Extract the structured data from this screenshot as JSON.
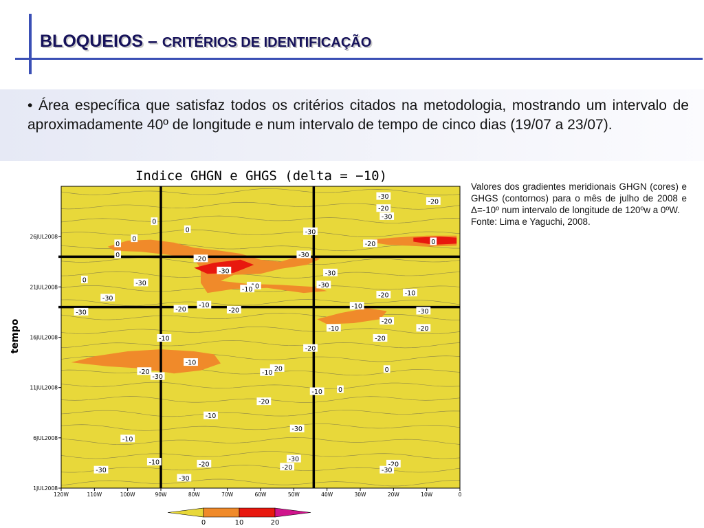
{
  "slide": {
    "title_main": "BLOQUEIOS – ",
    "title_sub": "CRITÉRIOS DE IDENTIFICAÇÃO",
    "bullet": "• Área específica que satisfaz todos os critérios citados na metodologia, mostrando um intervalo de aproximadamente 40º de longitude e num intervalo de tempo de cinco dias (19/07 a 23/07).",
    "caption_line1": "Valores dos gradientes meridionais GHGN (cores) e GHGS (contornos) para o mês de julho de 2008 e Δ=-10º num intervalo de longitude de 120ºw a 0ºW.",
    "caption_line2": "Fonte: Lima e Yaguchi, 2008.",
    "accent_color": "#3a4fb5",
    "title_color": "#16125a"
  },
  "chart_data": {
    "type": "heatmap",
    "title": "Indice GHGN e GHGS (delta = −10)",
    "ylabel": "tempo",
    "x_ticks": [
      "120W",
      "110W",
      "100W",
      "90W",
      "80W",
      "70W",
      "60W",
      "50W",
      "40W",
      "30W",
      "20W",
      "10W",
      "0"
    ],
    "x_values": [
      -120,
      -110,
      -100,
      -90,
      -80,
      -70,
      -60,
      -50,
      -40,
      -30,
      -20,
      -10,
      0
    ],
    "xlim": [
      -120,
      0
    ],
    "y_ticks": [
      "1JUL2008",
      "6JUL2008",
      "11JUL2008",
      "16JUL2008",
      "21JUL2008",
      "26JUL2008"
    ],
    "y_days": [
      1,
      6,
      11,
      16,
      21,
      26
    ],
    "ylim": [
      1,
      31
    ],
    "colorbar": {
      "levels": [
        0,
        10,
        20
      ],
      "labels": [
        "0",
        "10",
        "20"
      ],
      "colors": [
        "#e8d83a",
        "#f08a2a",
        "#e8180e",
        "#d0148c"
      ]
    },
    "highlight_box": {
      "lon": [
        -90,
        -44
      ],
      "days": [
        19,
        24
      ]
    },
    "fill_regions": [
      {
        "level": 10,
        "points": [
          [
            -106,
            25
          ],
          [
            -100,
            25.6
          ],
          [
            -93,
            25.7
          ],
          [
            -86,
            25.4
          ],
          [
            -80,
            24.9
          ],
          [
            -72,
            24.6
          ],
          [
            -66,
            24.3
          ],
          [
            -60,
            23.7
          ],
          [
            -54,
            23.5
          ],
          [
            -47,
            24.2
          ],
          [
            -42,
            23.8
          ],
          [
            -46,
            23.2
          ],
          [
            -54,
            22.8
          ],
          [
            -60,
            22.3
          ],
          [
            -68,
            22.2
          ],
          [
            -72,
            21.6
          ],
          [
            -64,
            21.3
          ],
          [
            -54,
            21.2
          ],
          [
            -44,
            21.0
          ],
          [
            -40,
            20.6
          ],
          [
            -47,
            20.4
          ],
          [
            -58,
            20.9
          ],
          [
            -68,
            20.8
          ],
          [
            -76,
            20.4
          ],
          [
            -78,
            21.4
          ],
          [
            -78,
            22.8
          ],
          [
            -80,
            23.8
          ],
          [
            -88,
            24.2
          ],
          [
            -96,
            24.5
          ],
          [
            -104,
            24.6
          ]
        ]
      },
      {
        "level": 20,
        "points": [
          [
            -80,
            22.9
          ],
          [
            -74,
            23.4
          ],
          [
            -66,
            23.7
          ],
          [
            -62,
            23.2
          ],
          [
            -68,
            22.4
          ],
          [
            -76,
            22.3
          ]
        ]
      },
      {
        "level": 10,
        "points": [
          [
            -43,
            17.8
          ],
          [
            -36,
            18.4
          ],
          [
            -28,
            18.9
          ],
          [
            -22,
            18.6
          ],
          [
            -24,
            17.8
          ],
          [
            -32,
            17.4
          ],
          [
            -40,
            17.3
          ]
        ]
      },
      {
        "level": 10,
        "points": [
          [
            -117,
            13.5
          ],
          [
            -110,
            14.1
          ],
          [
            -100,
            14.6
          ],
          [
            -90,
            14.8
          ],
          [
            -80,
            14.6
          ],
          [
            -74,
            14.3
          ],
          [
            -72,
            13.4
          ],
          [
            -78,
            12.7
          ],
          [
            -86,
            12.4
          ],
          [
            -96,
            12.9
          ],
          [
            -106,
            13.1
          ]
        ]
      },
      {
        "level": 10,
        "points": [
          [
            -30,
            25.6
          ],
          [
            -20,
            25.9
          ],
          [
            -10,
            26.1
          ],
          [
            -1,
            26.1
          ],
          [
            -1,
            25.1
          ],
          [
            -10,
            25.0
          ],
          [
            -22,
            25.2
          ]
        ]
      },
      {
        "level": 20,
        "points": [
          [
            -14,
            25.9
          ],
          [
            -6,
            26.0
          ],
          [
            -1,
            25.9
          ],
          [
            -1,
            25.3
          ],
          [
            -8,
            25.2
          ],
          [
            -14,
            25.5
          ]
        ]
      }
    ],
    "contour_labels": [
      {
        "text": "-30",
        "lon": -23,
        "day": 30
      },
      {
        "text": "-20",
        "lon": -8,
        "day": 29.5
      },
      {
        "text": "-20",
        "lon": -23,
        "day": 28.8
      },
      {
        "text": "-30",
        "lon": -22,
        "day": 28
      },
      {
        "text": "0",
        "lon": -92,
        "day": 27.5
      },
      {
        "text": "0",
        "lon": -82,
        "day": 26.7
      },
      {
        "text": "-30",
        "lon": -45,
        "day": 26.5
      },
      {
        "text": "0",
        "lon": -98,
        "day": 25.8
      },
      {
        "text": "0",
        "lon": -103,
        "day": 25.3
      },
      {
        "text": "-20",
        "lon": -27,
        "day": 25.3
      },
      {
        "text": "0",
        "lon": -8,
        "day": 25.5
      },
      {
        "text": "0",
        "lon": -103,
        "day": 24.2
      },
      {
        "text": "-30",
        "lon": -47,
        "day": 24.2
      },
      {
        "text": "-20",
        "lon": -78,
        "day": 23.8
      },
      {
        "text": "-30",
        "lon": -71,
        "day": 22.6
      },
      {
        "text": "-30",
        "lon": -39,
        "day": 22.4
      },
      {
        "text": "0",
        "lon": -113,
        "day": 21.7
      },
      {
        "text": "-30",
        "lon": -96,
        "day": 21.4
      },
      {
        "text": "-10",
        "lon": -62,
        "day": 21.1
      },
      {
        "text": "-10",
        "lon": -64,
        "day": 20.8
      },
      {
        "text": "-30",
        "lon": -41,
        "day": 21.2
      },
      {
        "text": "-30",
        "lon": -106,
        "day": 19.9
      },
      {
        "text": "-20",
        "lon": -23,
        "day": 20.2
      },
      {
        "text": "-10",
        "lon": -15,
        "day": 20.4
      },
      {
        "text": "-10",
        "lon": -77,
        "day": 19.2
      },
      {
        "text": "-20",
        "lon": -84,
        "day": 18.8
      },
      {
        "text": "-20",
        "lon": -68,
        "day": 18.7
      },
      {
        "text": "-10",
        "lon": -31,
        "day": 19.1
      },
      {
        "text": "-30",
        "lon": -114,
        "day": 18.5
      },
      {
        "text": "-30",
        "lon": -11,
        "day": 18.6
      },
      {
        "text": "-20",
        "lon": -22,
        "day": 17.6
      },
      {
        "text": "-10",
        "lon": -38,
        "day": 16.9
      },
      {
        "text": "-20",
        "lon": -11,
        "day": 16.9
      },
      {
        "text": "-10",
        "lon": -89,
        "day": 15.9
      },
      {
        "text": "-20",
        "lon": -24,
        "day": 15.9
      },
      {
        "text": "-20",
        "lon": -45,
        "day": 14.9
      },
      {
        "text": "-10",
        "lon": -81,
        "day": 13.5
      },
      {
        "text": "-20",
        "lon": -95,
        "day": 12.6
      },
      {
        "text": "-20",
        "lon": -55,
        "day": 12.9
      },
      {
        "text": "-10",
        "lon": -58,
        "day": 12.5
      },
      {
        "text": "0",
        "lon": -22,
        "day": 12.8
      },
      {
        "text": "-30",
        "lon": -91,
        "day": 12.1
      },
      {
        "text": "-10",
        "lon": -43,
        "day": 10.6
      },
      {
        "text": "0",
        "lon": -36,
        "day": 10.8
      },
      {
        "text": "-20",
        "lon": -59,
        "day": 9.6
      },
      {
        "text": "-10",
        "lon": -75,
        "day": 8.2
      },
      {
        "text": "-30",
        "lon": -49,
        "day": 6.9
      },
      {
        "text": "-10",
        "lon": -100,
        "day": 5.9
      },
      {
        "text": "-30",
        "lon": -50,
        "day": 3.9
      },
      {
        "text": "-10",
        "lon": -92,
        "day": 3.6
      },
      {
        "text": "-20",
        "lon": -77,
        "day": 3.4
      },
      {
        "text": "-20",
        "lon": -52,
        "day": 3.1
      },
      {
        "text": "-20",
        "lon": -20,
        "day": 3.4
      },
      {
        "text": "-30",
        "lon": -108,
        "day": 2.8
      },
      {
        "text": "-30",
        "lon": -22,
        "day": 2.8
      },
      {
        "text": "-30",
        "lon": -83,
        "day": 2.0
      }
    ]
  }
}
